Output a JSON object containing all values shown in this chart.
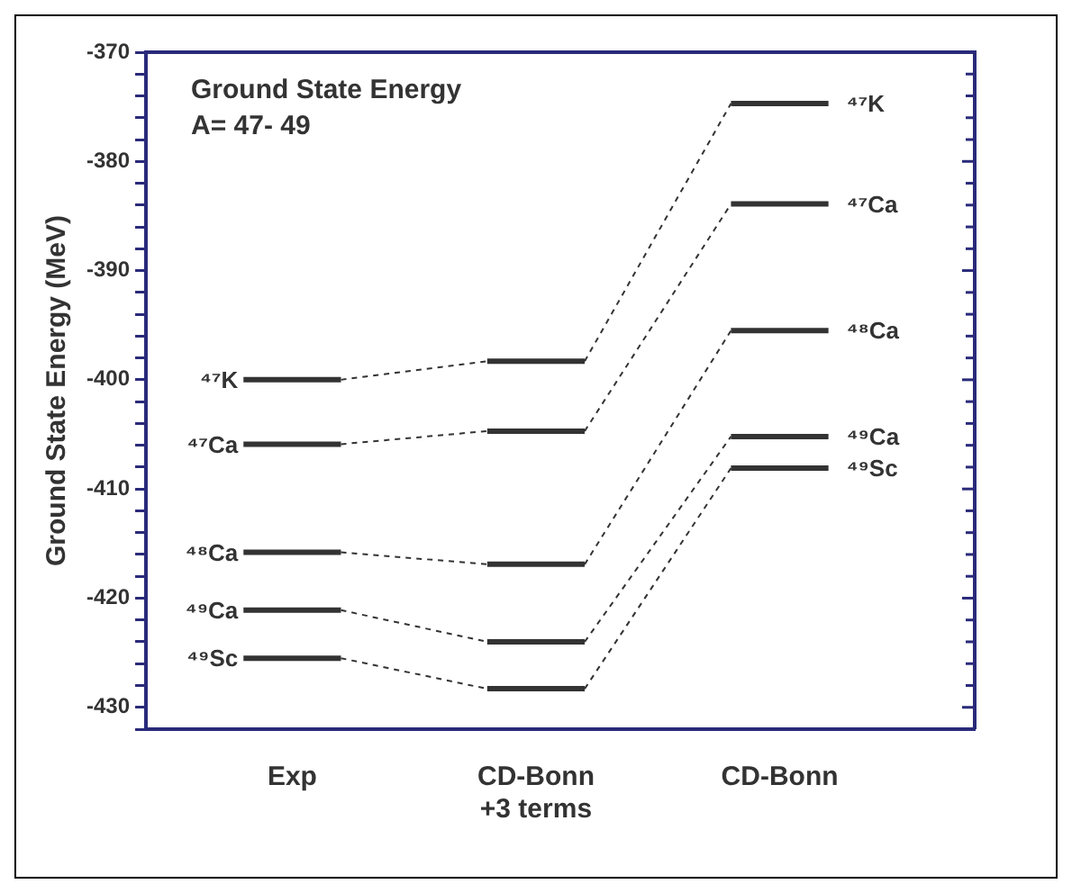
{
  "chart_data": {
    "type": "line",
    "title": "Ground State Energy",
    "subtitle": "A= 47- 49",
    "ylabel": "Ground State Energy (MeV)",
    "categories": [
      null,
      null,
      null,
      "Exp",
      null,
      null,
      null,
      null,
      "CD-Bonn\n+3 terms",
      null,
      null,
      null,
      null,
      "CD-Bonn",
      null,
      null,
      null,
      null
    ],
    "series": [
      {
        "name": "⁴⁷K",
        "color": "#333333",
        "values": [
          null,
          null,
          -400.0,
          -400.0,
          -400.0,
          null,
          null,
          -398.3,
          -398.3,
          -398.3,
          null,
          null,
          -374.7,
          -374.7,
          -374.7,
          null,
          null,
          null
        ]
      },
      {
        "name": "⁴⁷Ca",
        "color": "#333333",
        "values": [
          null,
          null,
          -405.9,
          -405.9,
          -405.9,
          null,
          null,
          -404.7,
          -404.7,
          -404.7,
          null,
          null,
          -383.9,
          -383.9,
          -383.9,
          null,
          null,
          null
        ]
      },
      {
        "name": "⁴⁸Ca",
        "color": "#333333",
        "values": [
          null,
          null,
          -415.8,
          -415.8,
          -415.8,
          null,
          null,
          -416.9,
          -416.9,
          -416.9,
          null,
          null,
          -395.5,
          -395.5,
          -395.5,
          null,
          null,
          null
        ]
      },
      {
        "name": "⁴⁹Ca",
        "color": "#333333",
        "values": [
          null,
          null,
          -421.1,
          -421.1,
          -421.1,
          null,
          null,
          -424.0,
          -424.0,
          -424.0,
          null,
          null,
          -405.2,
          -405.2,
          -405.2,
          null,
          null,
          null
        ]
      },
      {
        "name": "⁴⁹Sc",
        "color": "#333333",
        "values": [
          null,
          null,
          -425.5,
          -425.5,
          -425.5,
          null,
          null,
          -428.3,
          -428.3,
          -428.3,
          null,
          null,
          -408.1,
          -408.1,
          -408.1,
          null,
          null,
          null
        ]
      }
    ],
    "ylim": [
      -432,
      -370
    ],
    "yticks": [
      -370,
      {
        "value": -372,
        "label": null
      },
      {
        "value": -374,
        "label": null
      },
      {
        "value": -376,
        "label": null
      },
      {
        "value": -378,
        "label": null
      },
      -380,
      {
        "value": -382,
        "label": null
      },
      {
        "value": -384,
        "label": null
      },
      {
        "value": -386,
        "label": null
      },
      {
        "value": -388,
        "label": null
      },
      -390,
      {
        "value": -392,
        "label": null
      },
      {
        "value": -394,
        "label": null
      },
      {
        "value": -396,
        "label": null
      },
      {
        "value": -398,
        "label": null
      },
      -400,
      {
        "value": -402,
        "label": null
      },
      {
        "value": -404,
        "label": null
      },
      {
        "value": -406,
        "label": null
      },
      {
        "value": -408,
        "label": null
      },
      -410,
      {
        "value": -412,
        "label": null
      },
      {
        "value": -414,
        "label": null
      },
      {
        "value": -416,
        "label": null
      },
      {
        "value": -418,
        "label": null
      },
      -420,
      {
        "value": -422,
        "label": null
      },
      {
        "value": -424,
        "label": null
      },
      {
        "value": -426,
        "label": null
      },
      {
        "value": -428,
        "label": null
      },
      -430,
      {
        "value": -432,
        "label": null
      }
    ],
    "grid": false,
    "legend": false,
    "line_style": "dashed",
    "marker": "none"
  }
}
